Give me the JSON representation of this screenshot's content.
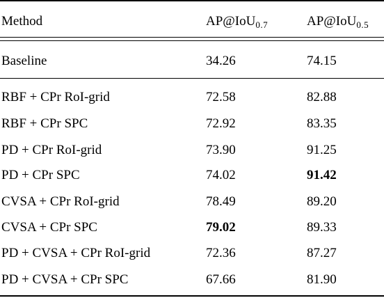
{
  "header": {
    "method": "Method",
    "col1_main": "AP@IoU",
    "col1_sub": "0.7",
    "col2_main": "AP@IoU",
    "col2_sub": "0.5"
  },
  "baseline": {
    "method": "Baseline",
    "ap07": "34.26",
    "ap05": "74.15"
  },
  "rows": [
    {
      "method": "RBF + CPr RoI-grid",
      "ap07": "72.58",
      "ap05": "82.88"
    },
    {
      "method": "RBF + CPr SPC",
      "ap07": "72.92",
      "ap05": "83.35"
    },
    {
      "method": "PD + CPr RoI-grid",
      "ap07": "73.90",
      "ap05": "91.25"
    },
    {
      "method": "PD + CPr SPC",
      "ap07": "74.02",
      "ap05": "91.42"
    },
    {
      "method": "CVSA + CPr RoI-grid",
      "ap07": "78.49",
      "ap05": "89.20"
    },
    {
      "method": "CVSA + CPr SPC",
      "ap07": "79.02",
      "ap05": "89.33"
    },
    {
      "method": "PD + CVSA + CPr RoI-grid",
      "ap07": "72.36",
      "ap05": "87.27"
    },
    {
      "method": "PD + CVSA + CPr SPC",
      "ap07": "67.66",
      "ap05": "81.90"
    }
  ]
}
